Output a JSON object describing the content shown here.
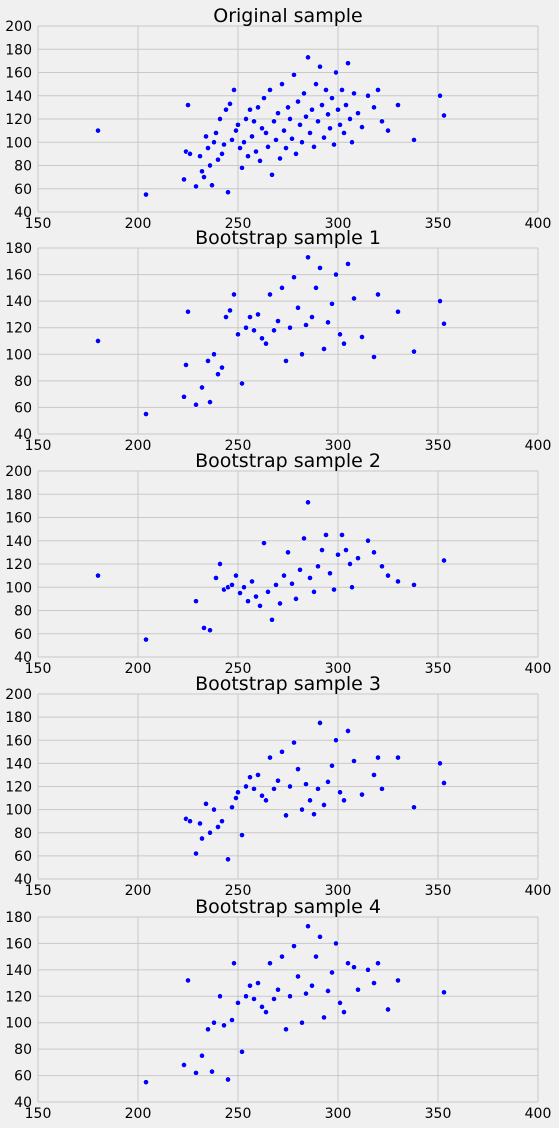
{
  "chart_data": [
    {
      "type": "scatter",
      "title": "Original sample",
      "xlim": [
        150,
        400
      ],
      "ylim": [
        40,
        200
      ],
      "xticks": [
        "150",
        "200",
        "250",
        "300",
        "350",
        "400"
      ],
      "yticks": [
        "40",
        "60",
        "80",
        "100",
        "120",
        "140",
        "160",
        "180",
        "200"
      ],
      "grid": true,
      "marker_color": "#0000ff",
      "points": [
        [
          180,
          110
        ],
        [
          204,
          55
        ],
        [
          223,
          68
        ],
        [
          224,
          92
        ],
        [
          225,
          132
        ],
        [
          226,
          90
        ],
        [
          229,
          62
        ],
        [
          231,
          88
        ],
        [
          232,
          75
        ],
        [
          233,
          70
        ],
        [
          234,
          105
        ],
        [
          235,
          95
        ],
        [
          236,
          80
        ],
        [
          237,
          63
        ],
        [
          238,
          100
        ],
        [
          239,
          108
        ],
        [
          240,
          85
        ],
        [
          241,
          120
        ],
        [
          242,
          90
        ],
        [
          243,
          98
        ],
        [
          244,
          128
        ],
        [
          245,
          57
        ],
        [
          246,
          133
        ],
        [
          247,
          102
        ],
        [
          248,
          145
        ],
        [
          249,
          110
        ],
        [
          250,
          115
        ],
        [
          251,
          95
        ],
        [
          252,
          78
        ],
        [
          253,
          100
        ],
        [
          254,
          120
        ],
        [
          255,
          88
        ],
        [
          256,
          128
        ],
        [
          257,
          105
        ],
        [
          258,
          118
        ],
        [
          259,
          92
        ],
        [
          260,
          130
        ],
        [
          261,
          84
        ],
        [
          262,
          112
        ],
        [
          263,
          138
        ],
        [
          264,
          108
        ],
        [
          265,
          96
        ],
        [
          266,
          145
        ],
        [
          267,
          72
        ],
        [
          268,
          118
        ],
        [
          269,
          102
        ],
        [
          270,
          125
        ],
        [
          271,
          86
        ],
        [
          272,
          150
        ],
        [
          273,
          110
        ],
        [
          274,
          95
        ],
        [
          275,
          130
        ],
        [
          276,
          120
        ],
        [
          277,
          103
        ],
        [
          278,
          158
        ],
        [
          279,
          90
        ],
        [
          280,
          135
        ],
        [
          281,
          115
        ],
        [
          282,
          100
        ],
        [
          283,
          142
        ],
        [
          284,
          122
        ],
        [
          285,
          173
        ],
        [
          286,
          108
        ],
        [
          287,
          128
        ],
        [
          288,
          96
        ],
        [
          289,
          150
        ],
        [
          290,
          118
        ],
        [
          291,
          165
        ],
        [
          292,
          132
        ],
        [
          293,
          104
        ],
        [
          294,
          145
        ],
        [
          295,
          124
        ],
        [
          296,
          112
        ],
        [
          297,
          138
        ],
        [
          298,
          98
        ],
        [
          299,
          160
        ],
        [
          300,
          128
        ],
        [
          301,
          115
        ],
        [
          302,
          145
        ],
        [
          303,
          108
        ],
        [
          304,
          132
        ],
        [
          305,
          168
        ],
        [
          306,
          120
        ],
        [
          307,
          100
        ],
        [
          308,
          142
        ],
        [
          310,
          125
        ],
        [
          312,
          113
        ],
        [
          315,
          140
        ],
        [
          318,
          130
        ],
        [
          320,
          145
        ],
        [
          322,
          118
        ],
        [
          325,
          110
        ],
        [
          330,
          132
        ],
        [
          338,
          102
        ],
        [
          351,
          140
        ],
        [
          353,
          123
        ]
      ]
    },
    {
      "type": "scatter",
      "title": "Bootstrap sample 1",
      "xlim": [
        150,
        400
      ],
      "ylim": [
        40,
        180
      ],
      "xticks": [
        "150",
        "200",
        "250",
        "300",
        "350",
        "400"
      ],
      "yticks": [
        "40",
        "60",
        "80",
        "100",
        "120",
        "140",
        "160",
        "180"
      ],
      "grid": true,
      "marker_color": "#0000ff",
      "points": [
        [
          180,
          110
        ],
        [
          204,
          55
        ],
        [
          223,
          68
        ],
        [
          224,
          92
        ],
        [
          225,
          132
        ],
        [
          229,
          62
        ],
        [
          232,
          75
        ],
        [
          235,
          95
        ],
        [
          236,
          64
        ],
        [
          238,
          100
        ],
        [
          240,
          85
        ],
        [
          242,
          90
        ],
        [
          244,
          128
        ],
        [
          246,
          133
        ],
        [
          248,
          145
        ],
        [
          250,
          115
        ],
        [
          252,
          78
        ],
        [
          254,
          120
        ],
        [
          256,
          128
        ],
        [
          258,
          118
        ],
        [
          260,
          130
        ],
        [
          262,
          112
        ],
        [
          264,
          108
        ],
        [
          266,
          145
        ],
        [
          268,
          118
        ],
        [
          270,
          125
        ],
        [
          272,
          150
        ],
        [
          274,
          95
        ],
        [
          276,
          120
        ],
        [
          278,
          158
        ],
        [
          280,
          135
        ],
        [
          282,
          100
        ],
        [
          284,
          122
        ],
        [
          285,
          173
        ],
        [
          287,
          128
        ],
        [
          289,
          150
        ],
        [
          291,
          165
        ],
        [
          293,
          104
        ],
        [
          295,
          124
        ],
        [
          297,
          138
        ],
        [
          299,
          160
        ],
        [
          301,
          115
        ],
        [
          303,
          108
        ],
        [
          305,
          168
        ],
        [
          308,
          142
        ],
        [
          312,
          113
        ],
        [
          318,
          98
        ],
        [
          320,
          145
        ],
        [
          330,
          132
        ],
        [
          338,
          102
        ],
        [
          351,
          140
        ],
        [
          353,
          123
        ]
      ]
    },
    {
      "type": "scatter",
      "title": "Bootstrap sample 2",
      "xlim": [
        150,
        400
      ],
      "ylim": [
        40,
        200
      ],
      "xticks": [
        "150",
        "200",
        "250",
        "300",
        "350",
        "400"
      ],
      "yticks": [
        "40",
        "60",
        "80",
        "100",
        "120",
        "140",
        "160",
        "180",
        "200"
      ],
      "grid": true,
      "marker_color": "#0000ff",
      "points": [
        [
          180,
          110
        ],
        [
          204,
          55
        ],
        [
          229,
          88
        ],
        [
          233,
          65
        ],
        [
          236,
          63
        ],
        [
          239,
          108
        ],
        [
          241,
          120
        ],
        [
          243,
          98
        ],
        [
          245,
          100
        ],
        [
          247,
          102
        ],
        [
          249,
          110
        ],
        [
          251,
          95
        ],
        [
          253,
          100
        ],
        [
          255,
          88
        ],
        [
          257,
          105
        ],
        [
          259,
          92
        ],
        [
          261,
          84
        ],
        [
          263,
          138
        ],
        [
          265,
          96
        ],
        [
          267,
          72
        ],
        [
          269,
          102
        ],
        [
          271,
          86
        ],
        [
          273,
          110
        ],
        [
          275,
          130
        ],
        [
          277,
          103
        ],
        [
          279,
          90
        ],
        [
          281,
          115
        ],
        [
          283,
          142
        ],
        [
          285,
          173
        ],
        [
          286,
          108
        ],
        [
          288,
          96
        ],
        [
          290,
          118
        ],
        [
          292,
          132
        ],
        [
          294,
          145
        ],
        [
          296,
          112
        ],
        [
          298,
          98
        ],
        [
          300,
          128
        ],
        [
          302,
          145
        ],
        [
          304,
          132
        ],
        [
          306,
          120
        ],
        [
          307,
          100
        ],
        [
          310,
          125
        ],
        [
          315,
          140
        ],
        [
          318,
          130
        ],
        [
          322,
          118
        ],
        [
          325,
          110
        ],
        [
          330,
          105
        ],
        [
          338,
          102
        ],
        [
          353,
          123
        ]
      ]
    },
    {
      "type": "scatter",
      "title": "Bootstrap sample 3",
      "xlim": [
        150,
        400
      ],
      "ylim": [
        40,
        200
      ],
      "xticks": [
        "150",
        "200",
        "250",
        "300",
        "350",
        "400"
      ],
      "yticks": [
        "40",
        "60",
        "80",
        "100",
        "120",
        "140",
        "160",
        "180",
        "200"
      ],
      "grid": true,
      "marker_color": "#0000ff",
      "points": [
        [
          224,
          92
        ],
        [
          226,
          90
        ],
        [
          229,
          62
        ],
        [
          231,
          88
        ],
        [
          232,
          75
        ],
        [
          234,
          105
        ],
        [
          236,
          80
        ],
        [
          238,
          100
        ],
        [
          240,
          85
        ],
        [
          242,
          90
        ],
        [
          245,
          57
        ],
        [
          247,
          102
        ],
        [
          249,
          110
        ],
        [
          250,
          115
        ],
        [
          252,
          78
        ],
        [
          254,
          120
        ],
        [
          256,
          128
        ],
        [
          258,
          118
        ],
        [
          260,
          130
        ],
        [
          262,
          112
        ],
        [
          264,
          108
        ],
        [
          266,
          145
        ],
        [
          268,
          118
        ],
        [
          270,
          125
        ],
        [
          272,
          150
        ],
        [
          274,
          95
        ],
        [
          276,
          120
        ],
        [
          278,
          158
        ],
        [
          280,
          135
        ],
        [
          282,
          100
        ],
        [
          284,
          122
        ],
        [
          286,
          108
        ],
        [
          288,
          96
        ],
        [
          290,
          118
        ],
        [
          291,
          175
        ],
        [
          293,
          104
        ],
        [
          295,
          124
        ],
        [
          297,
          138
        ],
        [
          299,
          160
        ],
        [
          301,
          115
        ],
        [
          303,
          108
        ],
        [
          305,
          168
        ],
        [
          308,
          142
        ],
        [
          312,
          113
        ],
        [
          318,
          130
        ],
        [
          320,
          145
        ],
        [
          322,
          118
        ],
        [
          330,
          145
        ],
        [
          338,
          102
        ],
        [
          351,
          140
        ],
        [
          353,
          123
        ]
      ]
    },
    {
      "type": "scatter",
      "title": "Bootstrap sample 4",
      "xlim": [
        150,
        400
      ],
      "ylim": [
        40,
        180
      ],
      "xticks": [
        "150",
        "200",
        "250",
        "300",
        "350",
        "400"
      ],
      "yticks": [
        "40",
        "60",
        "80",
        "100",
        "120",
        "140",
        "160",
        "180"
      ],
      "grid": true,
      "marker_color": "#0000ff",
      "points": [
        [
          204,
          55
        ],
        [
          223,
          68
        ],
        [
          225,
          132
        ],
        [
          229,
          62
        ],
        [
          232,
          75
        ],
        [
          235,
          95
        ],
        [
          237,
          63
        ],
        [
          238,
          100
        ],
        [
          241,
          120
        ],
        [
          243,
          98
        ],
        [
          245,
          57
        ],
        [
          247,
          102
        ],
        [
          248,
          145
        ],
        [
          250,
          115
        ],
        [
          252,
          78
        ],
        [
          254,
          120
        ],
        [
          256,
          128
        ],
        [
          258,
          118
        ],
        [
          260,
          130
        ],
        [
          262,
          112
        ],
        [
          264,
          108
        ],
        [
          266,
          145
        ],
        [
          268,
          118
        ],
        [
          270,
          125
        ],
        [
          272,
          150
        ],
        [
          274,
          95
        ],
        [
          276,
          120
        ],
        [
          278,
          158
        ],
        [
          280,
          135
        ],
        [
          282,
          100
        ],
        [
          284,
          122
        ],
        [
          285,
          173
        ],
        [
          287,
          128
        ],
        [
          289,
          150
        ],
        [
          291,
          165
        ],
        [
          293,
          104
        ],
        [
          295,
          124
        ],
        [
          297,
          138
        ],
        [
          299,
          160
        ],
        [
          301,
          115
        ],
        [
          303,
          108
        ],
        [
          305,
          145
        ],
        [
          308,
          142
        ],
        [
          310,
          125
        ],
        [
          315,
          140
        ],
        [
          318,
          130
        ],
        [
          320,
          145
        ],
        [
          325,
          110
        ],
        [
          330,
          132
        ],
        [
          353,
          123
        ]
      ]
    }
  ]
}
